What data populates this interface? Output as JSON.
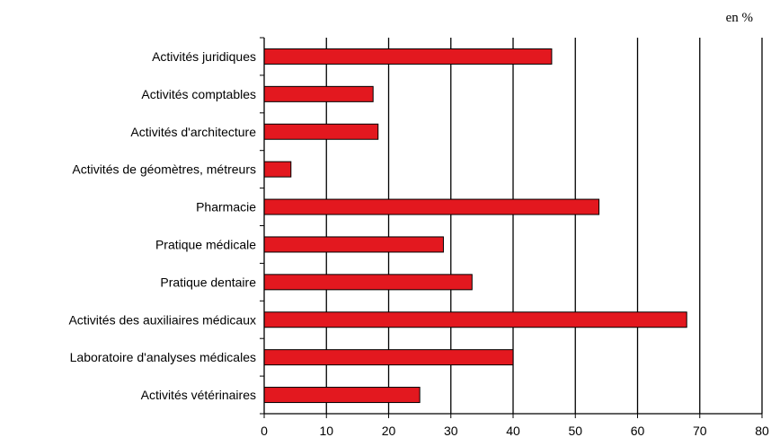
{
  "unit_label": "en %",
  "chart_data": {
    "type": "bar",
    "orientation": "horizontal",
    "title": "",
    "xlabel": "",
    "ylabel": "",
    "categories": [
      "Activités juridiques",
      "Activités comptables",
      "Activités d'architecture",
      "Activités de géomètres, métreurs",
      "Pharmacie",
      "Pratique médicale",
      "Pratique dentaire",
      "Activités des auxiliaires médicaux",
      "Laboratoire d'analyses médicales",
      "Activités vétérinaires"
    ],
    "values": [
      46.2,
      17.5,
      18.3,
      4.3,
      53.8,
      28.8,
      33.4,
      67.9,
      40.0,
      25.0
    ],
    "xlim": [
      0,
      80
    ],
    "xticks": [
      "0",
      "10",
      "20",
      "30",
      "40",
      "50",
      "60",
      "70",
      "80"
    ],
    "grid": "vertical",
    "bar_color": "#e3181f",
    "bar_edge_color": "#000000"
  }
}
